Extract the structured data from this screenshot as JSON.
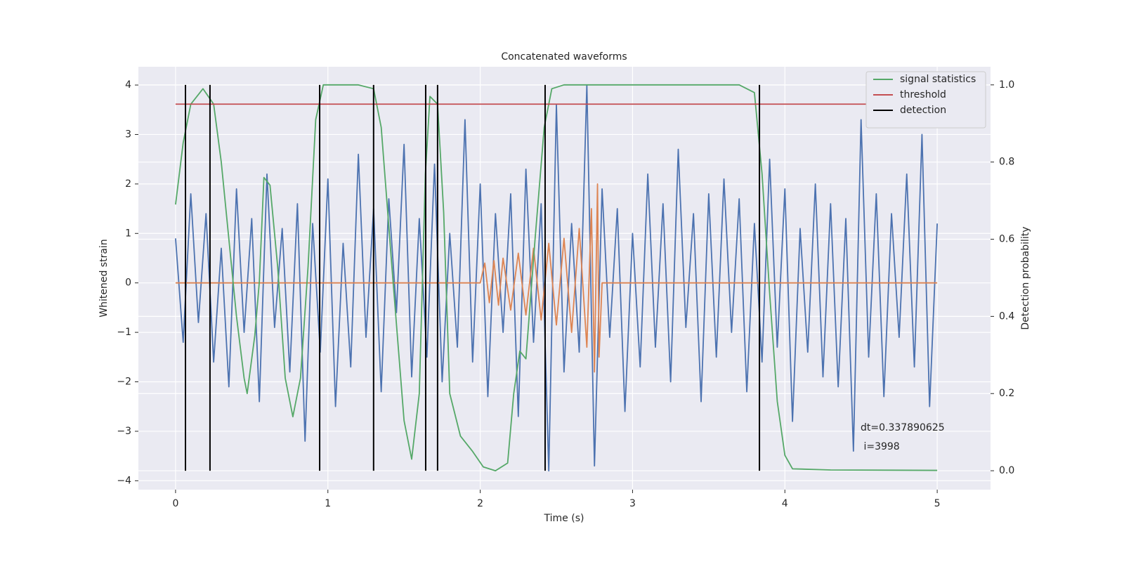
{
  "chart_data": {
    "type": "line",
    "title": "Concatenated waveforms",
    "xlabel": "Time (s)",
    "ylabel": "Whitened strain",
    "y2label": "Detection probability",
    "xlim": [
      -0.244,
      5.35
    ],
    "ylim": [
      -4.18,
      4.37
    ],
    "y2lim": [
      -0.049,
      1.047
    ],
    "xticks": [
      0,
      1,
      2,
      3,
      4,
      5
    ],
    "yticks": [
      {
        "value": -4,
        "label": "−4"
      },
      {
        "value": -3,
        "label": "−3"
      },
      {
        "value": -2,
        "label": "−2"
      },
      {
        "value": -1,
        "label": "−1"
      },
      0,
      1,
      2,
      3,
      4
    ],
    "y2ticks": [
      {
        "value": 0,
        "label": "0.0"
      },
      0.2,
      0.4,
      0.6,
      0.8,
      {
        "value": 1,
        "label": "1.0"
      }
    ],
    "grid": true,
    "legend": "upper right",
    "annotation": [
      "dt=0.337890625",
      " i=3998"
    ],
    "series": [
      {
        "color": "#4c72b0",
        "x": [
          0,
          0.05,
          0.1,
          0.15,
          0.2,
          0.25,
          0.3,
          0.35,
          0.4,
          0.45,
          0.5,
          0.55,
          0.6,
          0.65,
          0.7,
          0.75,
          0.8,
          0.85,
          0.9,
          0.95,
          1,
          1.05,
          1.1,
          1.15,
          1.2,
          1.25,
          1.3,
          1.35,
          1.4,
          1.45,
          1.5,
          1.55,
          1.6,
          1.65,
          1.7,
          1.75,
          1.8,
          1.85,
          1.9,
          1.95,
          2,
          2.05,
          2.1,
          2.15,
          2.2,
          2.25,
          2.3,
          2.35,
          2.4,
          2.45,
          2.5,
          2.55,
          2.6,
          2.65,
          2.7,
          2.75,
          2.8,
          2.85,
          2.9,
          2.95,
          3,
          3.05,
          3.1,
          3.15,
          3.2,
          3.25,
          3.3,
          3.35,
          3.4,
          3.45,
          3.5,
          3.55,
          3.6,
          3.65,
          3.7,
          3.75,
          3.8,
          3.85,
          3.9,
          3.95,
          4,
          4.05,
          4.1,
          4.15,
          4.2,
          4.25,
          4.3,
          4.35,
          4.4,
          4.45,
          4.5,
          4.55,
          4.6,
          4.65,
          4.7,
          4.75,
          4.8,
          4.85,
          4.9,
          4.95,
          5
        ],
        "values": [
          0.9,
          -1.2,
          1.8,
          -0.8,
          1.4,
          -1.6,
          0.7,
          -2.1,
          1.9,
          -1.0,
          1.3,
          -2.4,
          2.2,
          -0.9,
          1.1,
          -1.8,
          1.6,
          -3.2,
          1.2,
          -1.4,
          2.1,
          -2.5,
          0.8,
          -1.7,
          2.6,
          -1.1,
          1.5,
          -2.2,
          1.7,
          -0.6,
          2.8,
          -1.9,
          1.3,
          -1.5,
          2.4,
          -2.0,
          1.0,
          -1.3,
          3.3,
          -1.6,
          2.0,
          -2.3,
          1.4,
          -1.0,
          1.8,
          -2.7,
          2.3,
          -1.2,
          1.6,
          -3.8,
          3.6,
          -1.8,
          1.2,
          -1.4,
          4.0,
          -3.7,
          1.9,
          -1.1,
          1.5,
          -2.6,
          1.0,
          -1.7,
          2.2,
          -1.3,
          1.6,
          -2.0,
          2.7,
          -0.9,
          1.4,
          -2.4,
          1.8,
          -1.5,
          2.1,
          -1.0,
          1.7,
          -2.2,
          1.2,
          -1.6,
          2.5,
          -1.3,
          1.9,
          -2.8,
          1.1,
          -1.4,
          2.0,
          -1.9,
          1.6,
          -2.1,
          1.3,
          -3.4,
          3.3,
          -1.5,
          1.8,
          -2.3,
          1.4,
          -1.1,
          2.2,
          -1.7,
          3.0,
          -2.5,
          1.2
        ]
      },
      {
        "color": "#dd8452",
        "x": [
          0,
          2,
          2.03,
          2.06,
          2.09,
          2.12,
          2.15,
          2.2,
          2.25,
          2.3,
          2.35,
          2.4,
          2.45,
          2.5,
          2.55,
          2.6,
          2.65,
          2.7,
          2.73,
          2.75,
          2.77,
          2.78,
          2.8,
          5
        ],
        "values": [
          0,
          0,
          0.4,
          -0.4,
          0.45,
          -0.45,
          0.5,
          -0.55,
          0.6,
          -0.65,
          0.7,
          -0.75,
          0.8,
          -0.85,
          0.9,
          -1.0,
          1.1,
          -1.3,
          1.5,
          -1.8,
          2.0,
          -1.5,
          0,
          0
        ]
      },
      {
        "name": "signal statistics",
        "color": "#55a868",
        "axis": "y2",
        "x": [
          0,
          0.05,
          0.1,
          0.18,
          0.25,
          0.3,
          0.35,
          0.4,
          0.45,
          0.47,
          0.52,
          0.55,
          0.58,
          0.62,
          0.67,
          0.72,
          0.77,
          0.82,
          0.87,
          0.92,
          0.97,
          1.2,
          1.3,
          1.35,
          1.42,
          1.5,
          1.55,
          1.6,
          1.64,
          1.67,
          1.72,
          1.76,
          1.8,
          1.87,
          1.95,
          2.02,
          2.1,
          2.18,
          2.22,
          2.26,
          2.3,
          2.36,
          2.42,
          2.47,
          2.55,
          3.7,
          3.8,
          3.85,
          3.9,
          3.95,
          4.0,
          4.05,
          4.3,
          5.0
        ],
        "values": [
          0.69,
          0.85,
          0.95,
          0.99,
          0.95,
          0.8,
          0.6,
          0.4,
          0.24,
          0.2,
          0.35,
          0.49,
          0.76,
          0.74,
          0.53,
          0.24,
          0.14,
          0.24,
          0.53,
          0.91,
          1.0,
          1.0,
          0.99,
          0.89,
          0.53,
          0.13,
          0.03,
          0.2,
          0.77,
          0.97,
          0.95,
          0.67,
          0.2,
          0.09,
          0.05,
          0.01,
          0.0,
          0.02,
          0.2,
          0.31,
          0.29,
          0.6,
          0.89,
          0.99,
          1.0,
          1.0,
          0.98,
          0.77,
          0.46,
          0.18,
          0.04,
          0.005,
          0.002,
          0.001
        ]
      },
      {
        "name": "threshold",
        "color": "#c44e52",
        "axis": "y2",
        "x": [
          0,
          5
        ],
        "values": [
          0.95,
          0.95
        ]
      },
      {
        "name": "detection",
        "color": "#000000",
        "axis": "y2",
        "marker": "vline",
        "x": [
          0.065,
          0.226,
          0.946,
          1.3,
          1.642,
          1.72,
          2.426,
          3.833
        ],
        "values": [
          1,
          1,
          1,
          1,
          1,
          1,
          1,
          1
        ]
      }
    ]
  }
}
